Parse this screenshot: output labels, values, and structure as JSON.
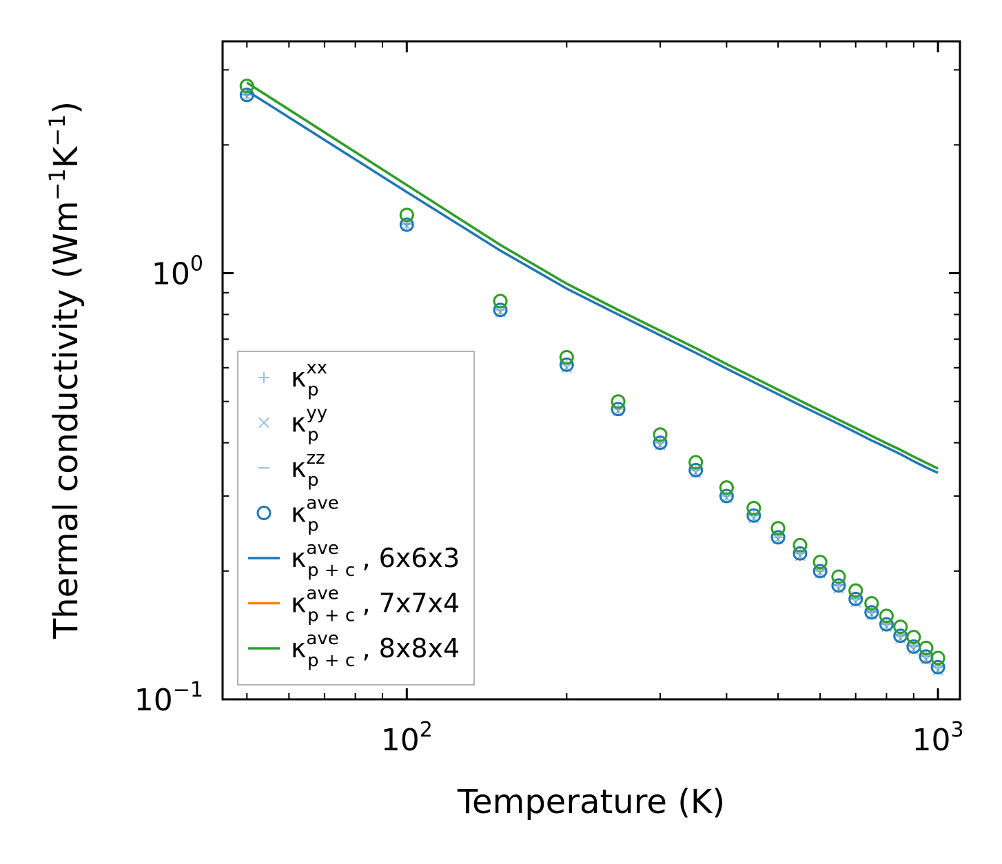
{
  "chart_data": {
    "type": "scatter",
    "xscale": "log",
    "yscale": "log",
    "xlabel": "Temperature (K)",
    "ylabel_main": "Thermal conductivity (Wm",
    "ylabel_mid": "K",
    "ylabel_sup": "−1",
    "ylabel_close": ")",
    "xlim": [
      45,
      1100
    ],
    "ylim": [
      0.1,
      3.5
    ],
    "x_ticks": [
      {
        "value": 100,
        "base": "10",
        "exp": "2"
      },
      {
        "value": 1000,
        "base": "10",
        "exp": "3"
      }
    ],
    "y_ticks": [
      {
        "value": 1,
        "base": "10",
        "exp": "0"
      },
      {
        "value": 0.1,
        "base": "10",
        "exp": "−1"
      }
    ],
    "x": [
      50,
      100,
      150,
      200,
      250,
      300,
      350,
      400,
      450,
      500,
      550,
      600,
      650,
      700,
      750,
      800,
      850,
      900,
      950,
      1000
    ],
    "points": [
      {
        "name": "kp_xx",
        "color": "#1f77b4",
        "marker": "plus",
        "values": [
          2.62,
          1.3,
          0.82,
          0.61,
          0.48,
          0.4,
          0.345,
          0.3,
          0.27,
          0.24,
          0.22,
          0.2,
          0.185,
          0.172,
          0.16,
          0.15,
          0.141,
          0.133,
          0.126,
          0.119
        ]
      },
      {
        "name": "kp_yy",
        "color": "#1f77b4",
        "marker": "x",
        "values": [
          2.6,
          1.29,
          0.81,
          0.6,
          0.475,
          0.395,
          0.34,
          0.297,
          0.266,
          0.238,
          0.217,
          0.198,
          0.182,
          0.169,
          0.158,
          0.148,
          0.139,
          0.131,
          0.124,
          0.117
        ]
      },
      {
        "name": "kp_zz",
        "color": "#1f77b4",
        "marker": "dash",
        "values": [
          2.63,
          1.31,
          0.83,
          0.615,
          0.485,
          0.405,
          0.348,
          0.303,
          0.272,
          0.243,
          0.222,
          0.202,
          0.186,
          0.173,
          0.161,
          0.151,
          0.142,
          0.134,
          0.127,
          0.12
        ]
      },
      {
        "name": "kp_ave_6x6x3",
        "color": "#1f77b4",
        "marker": "circle",
        "values": [
          2.62,
          1.3,
          0.82,
          0.61,
          0.48,
          0.4,
          0.345,
          0.3,
          0.27,
          0.24,
          0.22,
          0.2,
          0.185,
          0.172,
          0.16,
          0.15,
          0.141,
          0.133,
          0.126,
          0.119
        ]
      },
      {
        "name": "kp_ave_7x7x4",
        "color": "#ff7f0e",
        "marker": "circle",
        "values": [
          2.75,
          1.37,
          0.86,
          0.635,
          0.5,
          0.418,
          0.36,
          0.314,
          0.281,
          0.252,
          0.23,
          0.21,
          0.194,
          0.18,
          0.168,
          0.157,
          0.148,
          0.14,
          0.132,
          0.125
        ]
      },
      {
        "name": "kp_ave_8x8x4",
        "color": "#2ca02c",
        "marker": "circle",
        "values": [
          2.75,
          1.37,
          0.86,
          0.635,
          0.5,
          0.418,
          0.36,
          0.314,
          0.281,
          0.252,
          0.23,
          0.21,
          0.194,
          0.18,
          0.168,
          0.157,
          0.148,
          0.14,
          0.132,
          0.125
        ]
      }
    ],
    "lines": [
      {
        "name": "kpc_ave_6x6x3",
        "color": "#1f77b4",
        "values": [
          2.68,
          1.55,
          1.13,
          0.92,
          0.8,
          0.715,
          0.65,
          0.597,
          0.555,
          0.52,
          0.49,
          0.465,
          0.443,
          0.423,
          0.405,
          0.39,
          0.376,
          0.362,
          0.35,
          0.34
        ]
      },
      {
        "name": "kpc_ave_7x7x4",
        "color": "#ff7f0e",
        "values": [
          2.8,
          1.61,
          1.165,
          0.945,
          0.82,
          0.733,
          0.667,
          0.612,
          0.569,
          0.533,
          0.502,
          0.476,
          0.453,
          0.433,
          0.415,
          0.399,
          0.385,
          0.371,
          0.359,
          0.348
        ]
      },
      {
        "name": "kpc_ave_8x8x4",
        "color": "#2ca02c",
        "values": [
          2.8,
          1.61,
          1.165,
          0.945,
          0.82,
          0.733,
          0.667,
          0.612,
          0.569,
          0.533,
          0.502,
          0.476,
          0.453,
          0.433,
          0.415,
          0.399,
          0.385,
          0.371,
          0.359,
          0.348
        ]
      }
    ],
    "legend_placement": "lower-left",
    "legend": [
      {
        "marker": "plus",
        "color": "#1f77b4",
        "base": "κ",
        "sub": "p",
        "sup": "xx",
        "suffix": ""
      },
      {
        "marker": "x",
        "color": "#1f77b4",
        "base": "κ",
        "sub": "p",
        "sup": "yy",
        "suffix": ""
      },
      {
        "marker": "dash",
        "color": "#1f77b4",
        "base": "κ",
        "sub": "p",
        "sup": "zz",
        "suffix": ""
      },
      {
        "marker": "circle",
        "color": "#1f77b4",
        "base": "κ",
        "sub": "p",
        "sup": "ave",
        "suffix": ""
      },
      {
        "marker": "line",
        "color": "#1f77b4",
        "base": "κ",
        "sub": "p + c",
        "sup": "ave",
        "suffix": ", 6x6x3"
      },
      {
        "marker": "line",
        "color": "#ff7f0e",
        "base": "κ",
        "sub": "p + c",
        "sup": "ave",
        "suffix": ", 7x7x4"
      },
      {
        "marker": "line",
        "color": "#2ca02c",
        "base": "κ",
        "sub": "p + c",
        "sup": "ave",
        "suffix": ", 8x8x4"
      }
    ]
  }
}
